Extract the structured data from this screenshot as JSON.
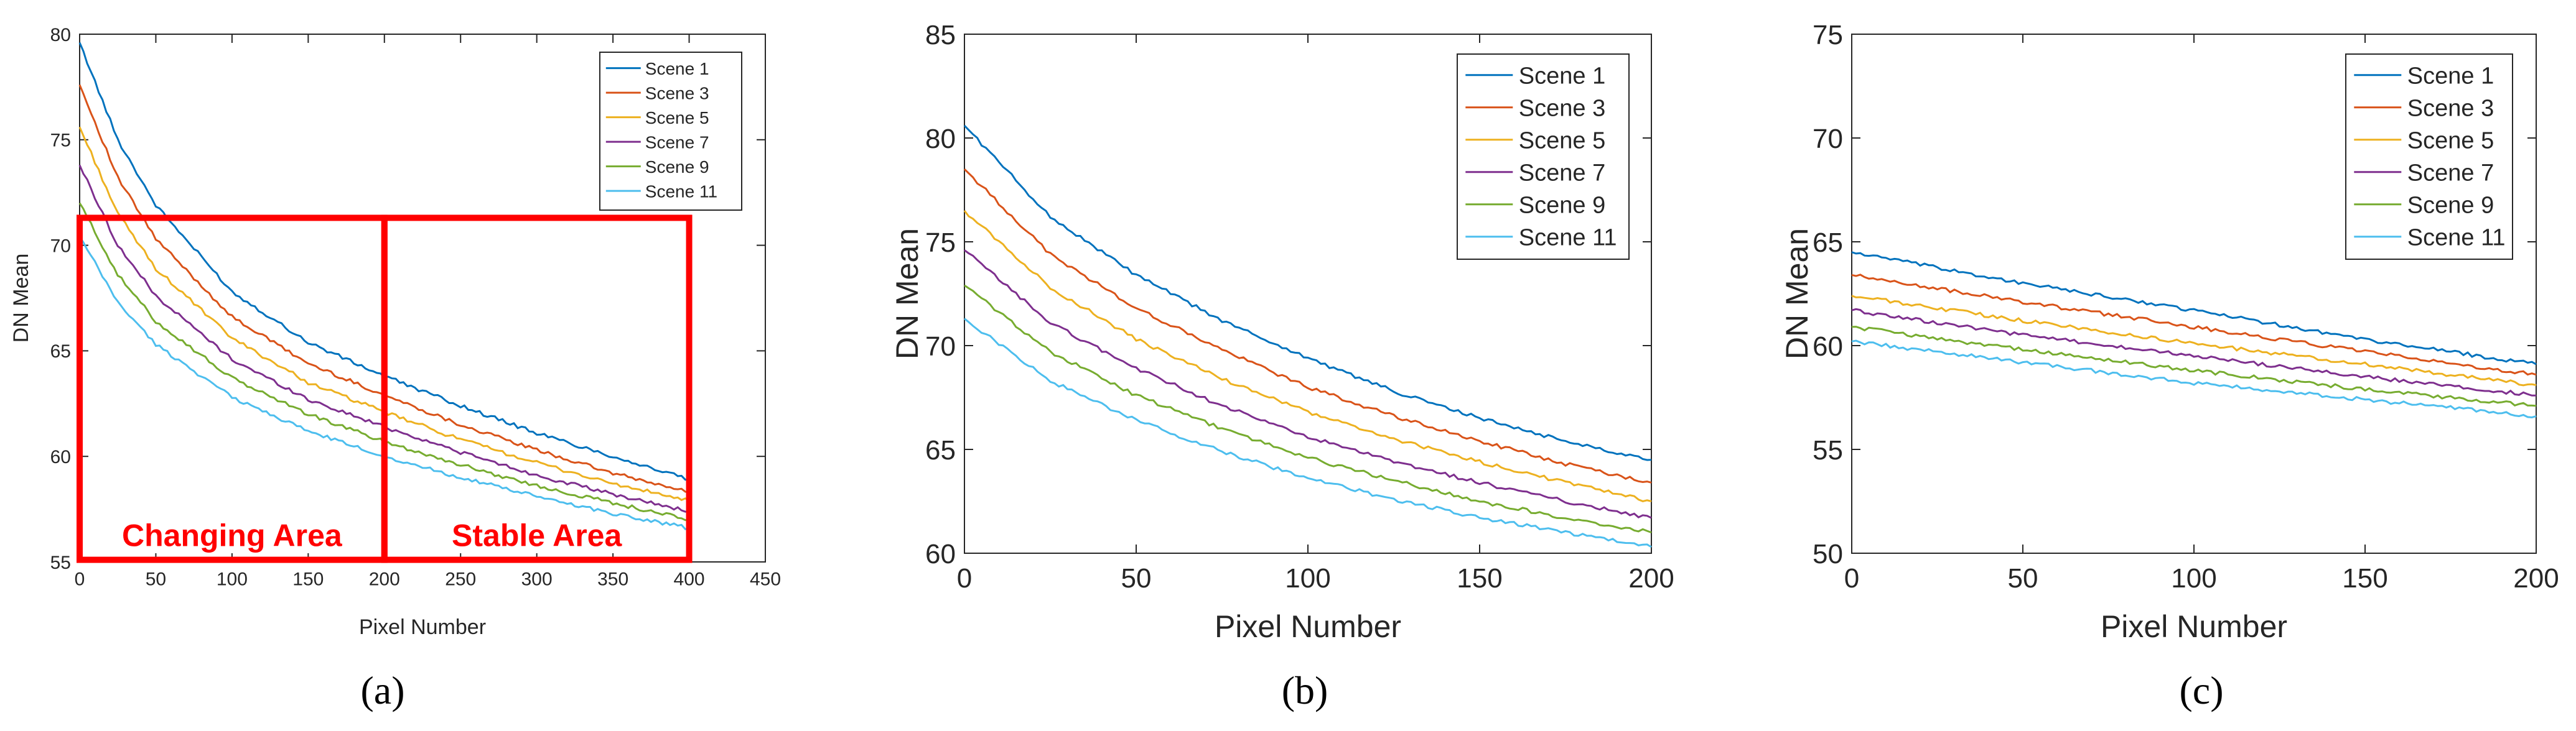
{
  "chart_data": [
    {
      "type": "line",
      "panel_label": "a",
      "title": "",
      "xlabel": "Pixel Number",
      "ylabel": "DN Mean",
      "xlim": [
        0,
        450
      ],
      "ylim": [
        55,
        80
      ],
      "xticks": [
        0,
        50,
        100,
        150,
        200,
        250,
        300,
        350,
        400,
        450
      ],
      "yticks": [
        55,
        60,
        65,
        70,
        75,
        80
      ],
      "legend": "top-right",
      "series": [
        {
          "name": "Scene 1",
          "color": "#0072BD",
          "x": [
            0,
            25,
            50,
            100,
            150,
            200,
            250,
            300,
            350,
            400
          ],
          "values": [
            79.6,
            75.0,
            71.9,
            67.8,
            65.4,
            63.8,
            62.4,
            61.1,
            60.0,
            58.9
          ]
        },
        {
          "name": "Scene 3",
          "color": "#D95319",
          "x": [
            0,
            25,
            50,
            100,
            150,
            200,
            250,
            300,
            350,
            400
          ],
          "values": [
            77.6,
            73.2,
            70.3,
            66.6,
            64.4,
            62.9,
            61.5,
            60.3,
            59.2,
            58.3
          ]
        },
        {
          "name": "Scene 5",
          "color": "#EDB120",
          "x": [
            0,
            25,
            50,
            100,
            150,
            200,
            250,
            300,
            350,
            400
          ],
          "values": [
            75.6,
            71.5,
            68.9,
            65.6,
            63.5,
            62.1,
            60.8,
            59.7,
            58.7,
            57.9
          ]
        },
        {
          "name": "Scene 7",
          "color": "#7E2F8E",
          "x": [
            0,
            25,
            50,
            100,
            150,
            200,
            250,
            300,
            350,
            400
          ],
          "values": [
            73.8,
            70.0,
            67.6,
            64.6,
            62.7,
            61.4,
            60.2,
            59.1,
            58.2,
            57.4
          ]
        },
        {
          "name": "Scene 9",
          "color": "#77AC30",
          "x": [
            0,
            25,
            50,
            100,
            150,
            200,
            250,
            300,
            350,
            400
          ],
          "values": [
            72.0,
            68.6,
            66.4,
            63.7,
            62.0,
            60.7,
            59.6,
            58.6,
            57.8,
            57.0
          ]
        },
        {
          "name": "Scene 11",
          "color": "#4DBEEE",
          "x": [
            0,
            25,
            50,
            100,
            150,
            200,
            250,
            300,
            350,
            400
          ],
          "values": [
            70.4,
            67.3,
            65.3,
            62.8,
            61.2,
            60.0,
            59.0,
            58.1,
            57.3,
            56.6
          ]
        }
      ],
      "regions": [
        {
          "label": "Changing Area",
          "x_range": [
            0,
            200
          ],
          "y_range": [
            55.1,
            71.3
          ]
        },
        {
          "label": "Stable Area",
          "x_range": [
            200,
            400
          ],
          "y_range": [
            55.1,
            71.3
          ]
        }
      ],
      "region_color": "#FF0000"
    },
    {
      "type": "line",
      "panel_label": "b",
      "title": "",
      "xlabel": "Pixel Number",
      "ylabel": "DN Mean",
      "xlim": [
        0,
        200
      ],
      "ylim": [
        60,
        85
      ],
      "xticks": [
        0,
        50,
        100,
        150,
        200
      ],
      "yticks": [
        60,
        65,
        70,
        75,
        80,
        85
      ],
      "legend": "top-right",
      "series": [
        {
          "name": "Scene 1",
          "color": "#0072BD",
          "x": [
            0,
            25,
            50,
            75,
            100,
            125,
            150,
            175,
            200
          ],
          "values": [
            80.6,
            76.2,
            73.4,
            71.2,
            69.4,
            67.8,
            66.5,
            65.4,
            64.5
          ]
        },
        {
          "name": "Scene 3",
          "color": "#D95319",
          "x": [
            0,
            25,
            50,
            75,
            100,
            125,
            150,
            175,
            200
          ],
          "values": [
            78.5,
            74.4,
            71.8,
            69.8,
            68.0,
            66.6,
            65.4,
            64.3,
            63.4
          ]
        },
        {
          "name": "Scene 5",
          "color": "#EDB120",
          "x": [
            0,
            25,
            50,
            75,
            100,
            125,
            150,
            175,
            200
          ],
          "values": [
            76.5,
            72.8,
            70.3,
            68.4,
            66.8,
            65.5,
            64.4,
            63.4,
            62.5
          ]
        },
        {
          "name": "Scene 7",
          "color": "#7E2F8E",
          "x": [
            0,
            25,
            50,
            75,
            100,
            125,
            150,
            175,
            200
          ],
          "values": [
            74.6,
            71.1,
            68.9,
            67.1,
            65.6,
            64.4,
            63.4,
            62.5,
            61.7
          ]
        },
        {
          "name": "Scene 9",
          "color": "#77AC30",
          "x": [
            0,
            25,
            50,
            75,
            100,
            125,
            150,
            175,
            200
          ],
          "values": [
            72.9,
            69.7,
            67.6,
            66.0,
            64.6,
            63.5,
            62.5,
            61.7,
            61.0
          ]
        },
        {
          "name": "Scene 11",
          "color": "#4DBEEE",
          "x": [
            0,
            25,
            50,
            75,
            100,
            125,
            150,
            175,
            200
          ],
          "values": [
            71.3,
            68.3,
            66.4,
            64.9,
            63.6,
            62.6,
            61.7,
            61.0,
            60.3
          ]
        }
      ]
    },
    {
      "type": "line",
      "panel_label": "c",
      "title": "",
      "xlabel": "Pixel Number",
      "ylabel": "DN Mean",
      "xlim": [
        0,
        200
      ],
      "ylim": [
        50,
        75
      ],
      "xticks": [
        0,
        50,
        100,
        150,
        200
      ],
      "yticks": [
        50,
        55,
        60,
        65,
        70,
        75
      ],
      "legend": "top-right",
      "series": [
        {
          "name": "Scene 1",
          "color": "#0072BD",
          "x": [
            0,
            50,
            100,
            150,
            200
          ],
          "values": [
            64.5,
            63.0,
            61.7,
            60.3,
            59.1
          ]
        },
        {
          "name": "Scene 3",
          "color": "#D95319",
          "x": [
            0,
            50,
            100,
            150,
            200
          ],
          "values": [
            63.4,
            62.1,
            60.9,
            59.7,
            58.6
          ]
        },
        {
          "name": "Scene 5",
          "color": "#EDB120",
          "x": [
            0,
            50,
            100,
            150,
            200
          ],
          "values": [
            62.4,
            61.2,
            60.1,
            59.1,
            58.1
          ]
        },
        {
          "name": "Scene 7",
          "color": "#7E2F8E",
          "x": [
            0,
            50,
            100,
            150,
            200
          ],
          "values": [
            61.7,
            60.5,
            59.5,
            58.5,
            57.6
          ]
        },
        {
          "name": "Scene 9",
          "color": "#77AC30",
          "x": [
            0,
            50,
            100,
            150,
            200
          ],
          "values": [
            60.9,
            59.8,
            58.8,
            57.9,
            57.1
          ]
        },
        {
          "name": "Scene 11",
          "color": "#4DBEEE",
          "x": [
            0,
            50,
            100,
            150,
            200
          ],
          "values": [
            60.2,
            59.2,
            58.2,
            57.4,
            56.6
          ]
        }
      ]
    }
  ],
  "captions": [
    "(a)",
    "(b)",
    "(c)"
  ]
}
